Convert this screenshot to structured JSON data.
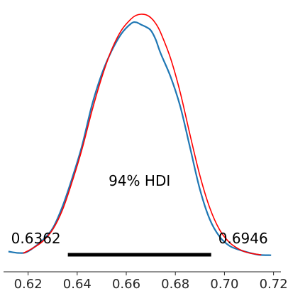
{
  "chart_data": {
    "type": "line",
    "title": "",
    "xlabel": "",
    "ylabel": "",
    "xlim": [
      0.61,
      0.723
    ],
    "ylim": [
      0,
      21
    ],
    "grid": false,
    "x_ticks": [
      "0.62",
      "0.64",
      "0.66",
      "0.68",
      "0.70",
      "0.72"
    ],
    "x_tick_values": [
      0.62,
      0.64,
      0.66,
      0.68,
      0.7,
      0.72
    ],
    "hdi": {
      "label": "94% HDI",
      "low_label": "0.6362",
      "high_label": "0.6946",
      "low": 0.6362,
      "high": 0.6946
    },
    "series": [
      {
        "color": "#1f77b4",
        "x": [
          0.612,
          0.616,
          0.619,
          0.622,
          0.626,
          0.63,
          0.634,
          0.638,
          0.642,
          0.646,
          0.65,
          0.654,
          0.658,
          0.662,
          0.664,
          0.666,
          0.668,
          0.67,
          0.672,
          0.674,
          0.678,
          0.682,
          0.686,
          0.69,
          0.694,
          0.698,
          0.702,
          0.706,
          0.71,
          0.714,
          0.719
        ],
        "y": [
          0.4,
          0.28,
          0.32,
          0.7,
          1.4,
          2.4,
          4.3,
          6.8,
          9.6,
          13.1,
          15.8,
          17.8,
          19.3,
          20.2,
          20.3,
          20.1,
          19.9,
          19.6,
          18.8,
          17.6,
          15.6,
          13.0,
          9.4,
          5.8,
          3.2,
          1.7,
          0.9,
          0.55,
          0.3,
          0.12,
          0.08
        ]
      },
      {
        "color": "#ff0000",
        "x": [
          0.618,
          0.622,
          0.626,
          0.63,
          0.634,
          0.638,
          0.642,
          0.646,
          0.65,
          0.654,
          0.658,
          0.662,
          0.664,
          0.666,
          0.668,
          0.67,
          0.672,
          0.674,
          0.678,
          0.682,
          0.686,
          0.69,
          0.694,
          0.698,
          0.702,
          0.706,
          0.71,
          0.715
        ],
        "y": [
          0.25,
          0.7,
          1.3,
          2.3,
          4.0,
          6.5,
          9.3,
          12.6,
          15.5,
          17.9,
          19.6,
          20.6,
          20.9,
          21.0,
          20.95,
          20.7,
          20.2,
          19.4,
          17.2,
          14.2,
          10.5,
          7.0,
          4.2,
          2.3,
          1.2,
          0.6,
          0.28,
          0.12
        ]
      }
    ]
  }
}
